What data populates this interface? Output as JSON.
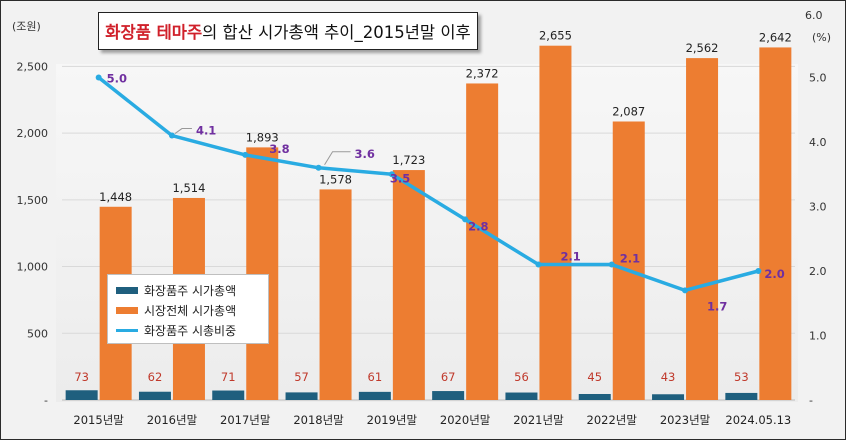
{
  "title": {
    "accent": "화장품 테마주",
    "rest": "의 합산 시가총액 추이_2015년말 이후"
  },
  "axes": {
    "left_unit": "(조원)",
    "right_unit": "(%)",
    "right_top_tick": "6.0"
  },
  "legend": {
    "items": [
      {
        "label": "화장품주 시가총액",
        "color": "#1f5f7e",
        "kind": "bar"
      },
      {
        "label": "시장전체 시가총액",
        "color": "#ed7d31",
        "kind": "bar"
      },
      {
        "label": "화장품주 시총비중",
        "color": "#29abe2",
        "kind": "line"
      }
    ]
  },
  "chart_data": {
    "type": "bar",
    "categories": [
      "2015년말",
      "2016년말",
      "2017년말",
      "2018년말",
      "2019년말",
      "2020년말",
      "2021년말",
      "2022년말",
      "2023년말",
      "2024.05.13"
    ],
    "series": [
      {
        "name": "화장품주 시가총액",
        "axis": "left",
        "type": "bar",
        "color": "#1f5f7e",
        "values": [
          73,
          62,
          71,
          57,
          61,
          67,
          56,
          45,
          43,
          53
        ]
      },
      {
        "name": "시장전체 시가총액",
        "axis": "left",
        "type": "bar",
        "color": "#ed7d31",
        "values": [
          1448,
          1514,
          1893,
          1578,
          1723,
          2372,
          2655,
          2087,
          2562,
          2642
        ]
      },
      {
        "name": "화장품주 시총비중",
        "axis": "right",
        "type": "line",
        "color": "#29abe2",
        "values": [
          5.0,
          4.1,
          3.8,
          3.6,
          3.5,
          2.8,
          2.1,
          2.1,
          1.7,
          2.0
        ]
      }
    ],
    "value_label_colors": {
      "small_bar": "#c0392b",
      "big_bar": "#222222",
      "line": "#7030a0"
    },
    "y_left": {
      "ylim": [
        0,
        2900
      ],
      "ticks": [
        0,
        500,
        1000,
        1500,
        2000,
        2500
      ],
      "tick_labels": [
        "-",
        "500",
        "1,000",
        "1,500",
        "2,000",
        "2,500"
      ]
    },
    "y_right": {
      "ylim": [
        0,
        6.0
      ],
      "ticks": [
        0,
        1,
        2,
        3,
        4,
        5
      ],
      "tick_labels": [
        "-",
        "1.0",
        "2.0",
        "3.0",
        "4.0",
        "5.0"
      ]
    },
    "grid": true
  }
}
